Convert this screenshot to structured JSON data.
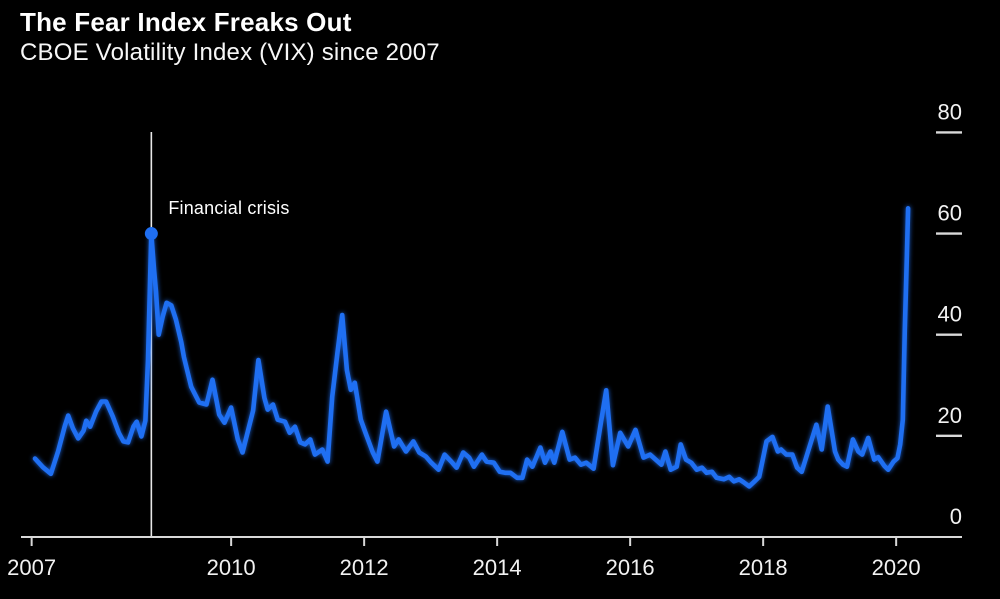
{
  "header": {
    "title": "The Fear Index Freaks Out",
    "subtitle": "CBOE Volatility Index (VIX) since 2007"
  },
  "chart_data": {
    "type": "line",
    "title": "The Fear Index Freaks Out",
    "subtitle": "CBOE Volatility Index (VIX) since 2007",
    "xlabel": "",
    "ylabel": "",
    "grid": false,
    "axis_side": "right",
    "background": "#000000",
    "line_color": "#1f6ff2",
    "axis_color": "#d9d9d9",
    "tick_label_color": "#f2f2f2",
    "annotation_line_color": "#e8e8e8",
    "x_domain": [
      2006.84,
      2020.99
    ],
    "ylim": [
      0,
      80
    ],
    "x_ticks": [
      {
        "year": 2007,
        "label": "2007"
      },
      {
        "year": 2010,
        "label": "2010"
      },
      {
        "year": 2012,
        "label": "2012"
      },
      {
        "year": 2014,
        "label": "2014"
      },
      {
        "year": 2016,
        "label": "2016"
      },
      {
        "year": 2018,
        "label": "2018"
      },
      {
        "year": 2020,
        "label": "2020"
      }
    ],
    "y_ticks": [
      {
        "value": 0,
        "label": "0",
        "dash": false
      },
      {
        "value": 20,
        "label": "20",
        "dash": true
      },
      {
        "value": 40,
        "label": "40",
        "dash": true
      },
      {
        "value": 60,
        "label": "60",
        "dash": true
      },
      {
        "value": 80,
        "label": "80",
        "dash": true
      }
    ],
    "annotation": {
      "label": "Financial crisis",
      "year": 2008.8,
      "value": 60.0,
      "marker": "dot"
    },
    "series": [
      {
        "name": "VIX",
        "points": [
          [
            2007.05,
            15.5
          ],
          [
            2007.17,
            13.8
          ],
          [
            2007.29,
            12.5
          ],
          [
            2007.4,
            17.0
          ],
          [
            2007.5,
            22.0
          ],
          [
            2007.55,
            24.0
          ],
          [
            2007.62,
            21.5
          ],
          [
            2007.7,
            19.5
          ],
          [
            2007.78,
            21.0
          ],
          [
            2007.82,
            23.0
          ],
          [
            2007.88,
            21.8
          ],
          [
            2007.97,
            24.8
          ],
          [
            2008.05,
            26.8
          ],
          [
            2008.12,
            26.8
          ],
          [
            2008.22,
            23.8
          ],
          [
            2008.31,
            20.6
          ],
          [
            2008.38,
            18.9
          ],
          [
            2008.45,
            18.7
          ],
          [
            2008.53,
            21.8
          ],
          [
            2008.58,
            22.8
          ],
          [
            2008.65,
            19.9
          ],
          [
            2008.71,
            23.0
          ],
          [
            2008.75,
            35.0
          ],
          [
            2008.8,
            60.0
          ],
          [
            2008.84,
            53.0
          ],
          [
            2008.87,
            48.5
          ],
          [
            2008.91,
            40.0
          ],
          [
            2008.97,
            43.5
          ],
          [
            2009.03,
            46.3
          ],
          [
            2009.1,
            45.8
          ],
          [
            2009.17,
            43.0
          ],
          [
            2009.25,
            38.5
          ],
          [
            2009.29,
            35.6
          ],
          [
            2009.4,
            29.7
          ],
          [
            2009.52,
            26.6
          ],
          [
            2009.63,
            26.2
          ],
          [
            2009.72,
            31.1
          ],
          [
            2009.82,
            24.2
          ],
          [
            2009.9,
            22.6
          ],
          [
            2010.0,
            25.6
          ],
          [
            2010.1,
            19.3
          ],
          [
            2010.17,
            16.7
          ],
          [
            2010.33,
            25.0
          ],
          [
            2010.41,
            35.0
          ],
          [
            2010.5,
            27.5
          ],
          [
            2010.55,
            25.2
          ],
          [
            2010.63,
            26.2
          ],
          [
            2010.7,
            23.2
          ],
          [
            2010.81,
            22.8
          ],
          [
            2010.88,
            20.6
          ],
          [
            2010.96,
            21.8
          ],
          [
            2011.04,
            18.7
          ],
          [
            2011.11,
            18.3
          ],
          [
            2011.19,
            19.3
          ],
          [
            2011.26,
            16.3
          ],
          [
            2011.37,
            17.3
          ],
          [
            2011.45,
            14.9
          ],
          [
            2011.52,
            27.7
          ],
          [
            2011.6,
            36.5
          ],
          [
            2011.67,
            43.9
          ],
          [
            2011.74,
            33.0
          ],
          [
            2011.8,
            29.1
          ],
          [
            2011.86,
            30.5
          ],
          [
            2011.95,
            23.2
          ],
          [
            2012.02,
            20.6
          ],
          [
            2012.13,
            16.7
          ],
          [
            2012.2,
            14.9
          ],
          [
            2012.33,
            24.8
          ],
          [
            2012.45,
            17.9
          ],
          [
            2012.52,
            19.3
          ],
          [
            2012.63,
            16.9
          ],
          [
            2012.74,
            18.9
          ],
          [
            2012.83,
            16.7
          ],
          [
            2012.93,
            15.9
          ],
          [
            2013.01,
            14.7
          ],
          [
            2013.12,
            13.3
          ],
          [
            2013.21,
            16.3
          ],
          [
            2013.31,
            14.9
          ],
          [
            2013.39,
            13.7
          ],
          [
            2013.49,
            16.7
          ],
          [
            2013.58,
            15.7
          ],
          [
            2013.65,
            13.9
          ],
          [
            2013.77,
            16.3
          ],
          [
            2013.84,
            14.9
          ],
          [
            2013.95,
            14.7
          ],
          [
            2014.04,
            12.9
          ],
          [
            2014.12,
            12.7
          ],
          [
            2014.2,
            12.7
          ],
          [
            2014.3,
            11.7
          ],
          [
            2014.38,
            11.7
          ],
          [
            2014.45,
            15.3
          ],
          [
            2014.53,
            13.9
          ],
          [
            2014.65,
            17.7
          ],
          [
            2014.72,
            14.7
          ],
          [
            2014.8,
            16.9
          ],
          [
            2014.86,
            14.7
          ],
          [
            2014.98,
            20.8
          ],
          [
            2015.09,
            15.3
          ],
          [
            2015.17,
            15.7
          ],
          [
            2015.26,
            14.3
          ],
          [
            2015.34,
            14.7
          ],
          [
            2015.45,
            13.5
          ],
          [
            2015.56,
            22.6
          ],
          [
            2015.64,
            29.0
          ],
          [
            2015.74,
            14.2
          ],
          [
            2015.85,
            20.6
          ],
          [
            2015.97,
            17.9
          ],
          [
            2016.08,
            21.2
          ],
          [
            2016.2,
            15.7
          ],
          [
            2016.3,
            16.3
          ],
          [
            2016.47,
            14.3
          ],
          [
            2016.53,
            16.9
          ],
          [
            2016.61,
            13.3
          ],
          [
            2016.7,
            13.9
          ],
          [
            2016.76,
            18.3
          ],
          [
            2016.84,
            15.3
          ],
          [
            2016.92,
            14.7
          ],
          [
            2017.0,
            13.3
          ],
          [
            2017.08,
            13.7
          ],
          [
            2017.15,
            12.7
          ],
          [
            2017.23,
            12.9
          ],
          [
            2017.3,
            11.7
          ],
          [
            2017.41,
            11.4
          ],
          [
            2017.49,
            11.9
          ],
          [
            2017.56,
            11.0
          ],
          [
            2017.64,
            11.4
          ],
          [
            2017.71,
            10.8
          ],
          [
            2017.79,
            10.0
          ],
          [
            2017.87,
            11.0
          ],
          [
            2017.94,
            11.9
          ],
          [
            2018.05,
            18.9
          ],
          [
            2018.14,
            19.8
          ],
          [
            2018.22,
            16.9
          ],
          [
            2018.27,
            17.3
          ],
          [
            2018.35,
            16.3
          ],
          [
            2018.44,
            16.3
          ],
          [
            2018.51,
            13.7
          ],
          [
            2018.58,
            12.9
          ],
          [
            2018.67,
            16.7
          ],
          [
            2018.8,
            22.2
          ],
          [
            2018.88,
            17.3
          ],
          [
            2018.97,
            25.8
          ],
          [
            2019.08,
            16.9
          ],
          [
            2019.13,
            15.3
          ],
          [
            2019.2,
            14.3
          ],
          [
            2019.26,
            13.9
          ],
          [
            2019.35,
            19.3
          ],
          [
            2019.43,
            16.9
          ],
          [
            2019.49,
            16.3
          ],
          [
            2019.58,
            19.6
          ],
          [
            2019.67,
            15.3
          ],
          [
            2019.73,
            15.8
          ],
          [
            2019.82,
            14.1
          ],
          [
            2019.88,
            13.3
          ],
          [
            2019.96,
            14.9
          ],
          [
            2020.02,
            15.6
          ],
          [
            2020.06,
            18.3
          ],
          [
            2020.1,
            23.2
          ],
          [
            2020.13,
            41.0
          ],
          [
            2020.16,
            55.0
          ],
          [
            2020.18,
            65.0
          ]
        ]
      }
    ]
  }
}
